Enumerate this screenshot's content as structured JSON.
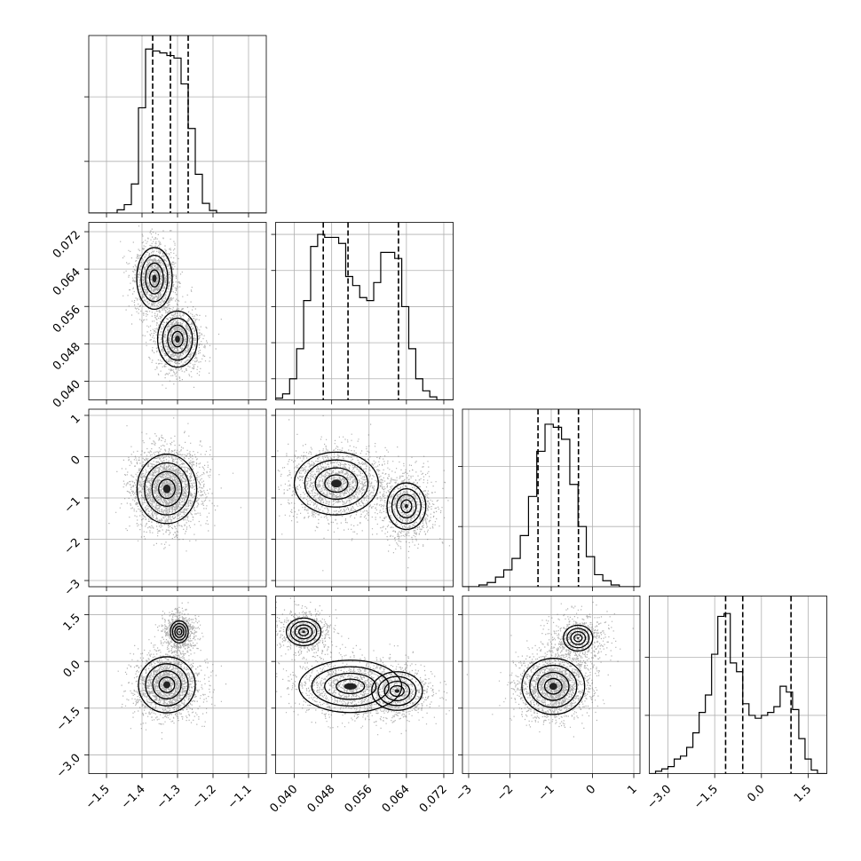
{
  "chart_data": {
    "type": "corner",
    "title": "",
    "grid": true,
    "parameters": [
      {
        "label": "",
        "range": [
          -1.55,
          -1.05
        ],
        "ticks": [
          -1.5,
          -1.4,
          -1.3,
          -1.2,
          -1.1
        ],
        "tick_labels": [
          "−1.5",
          "−1.4",
          "−1.3",
          "−1.2",
          "−1.1"
        ],
        "quantiles": [
          -1.37,
          -1.32,
          -1.27
        ],
        "hist": {
          "edges": [
            -1.55,
            -1.53,
            -1.51,
            -1.49,
            -1.47,
            -1.45,
            -1.43,
            -1.41,
            -1.39,
            -1.37,
            -1.35,
            -1.33,
            -1.31,
            -1.29,
            -1.27,
            -1.25,
            -1.23,
            -1.21,
            -1.19,
            -1.17,
            -1.15,
            -1.13,
            -1.11,
            -1.09,
            -1.07,
            -1.05
          ],
          "counts": [
            0,
            0,
            0,
            0,
            0.5,
            1.3,
            4.5,
            16.3,
            25.4,
            25.1,
            24.8,
            24.4,
            24.0,
            20.0,
            13.1,
            6.0,
            1.5,
            0.4,
            0,
            0,
            0,
            0,
            0,
            0,
            0
          ],
          "ylim": [
            0,
            27.5
          ],
          "grid_y": [
            8,
            18
          ]
        }
      },
      {
        "label": "",
        "range": [
          0.036,
          0.074
        ],
        "ticks": [
          0.04,
          0.048,
          0.056,
          0.064,
          0.072
        ],
        "tick_labels": [
          "0.040",
          "0.048",
          "0.056",
          "0.064",
          "0.072"
        ],
        "quantiles": [
          0.0462,
          0.0515,
          0.0623
        ],
        "hist": {
          "edges": [
            0.036,
            0.0375,
            0.039,
            0.0405,
            0.042,
            0.0435,
            0.045,
            0.0465,
            0.048,
            0.0495,
            0.051,
            0.0525,
            0.054,
            0.0555,
            0.057,
            0.0585,
            0.06,
            0.0615,
            0.063,
            0.0645,
            0.066,
            0.0675,
            0.069,
            0.0705,
            0.072,
            0.0735,
            0.074
          ],
          "counts": [
            0.3,
            1.0,
            3.5,
            8.5,
            16.5,
            25.5,
            27.5,
            27.0,
            27.0,
            26.0,
            20.5,
            19.0,
            17.0,
            16.5,
            19.5,
            24.5,
            24.5,
            23.5,
            15.5,
            8.5,
            3.5,
            1.5,
            0.5,
            0,
            0,
            0
          ],
          "ylim": [
            0,
            29.5
          ],
          "grid_y": [
            3.5,
            9.5,
            15.5,
            21.5,
            27.5
          ]
        }
      },
      {
        "label": "",
        "range": [
          -3.15,
          1.15
        ],
        "ticks": [
          -3,
          -2,
          -1,
          0,
          1
        ],
        "tick_labels": [
          "−3",
          "−2",
          "−1",
          "0",
          "1"
        ],
        "quantiles": [
          -1.32,
          -0.82,
          -0.34
        ],
        "hist": {
          "edges": [
            -3.15,
            -2.95,
            -2.75,
            -2.55,
            -2.35,
            -2.15,
            -1.95,
            -1.75,
            -1.55,
            -1.35,
            -1.15,
            -0.95,
            -0.75,
            -0.55,
            -0.35,
            -0.15,
            0.05,
            0.25,
            0.45,
            0.65,
            0.85,
            1.05,
            1.15
          ],
          "counts": [
            0,
            0,
            0.3,
            0.7,
            1.6,
            2.8,
            4.7,
            8.5,
            15.0,
            22.5,
            27.0,
            26.5,
            24.5,
            17.0,
            10.0,
            5.0,
            2.0,
            1.0,
            0.3,
            0,
            0,
            0
          ],
          "ylim": [
            0,
            29.5
          ],
          "grid_y": [
            10,
            20
          ]
        }
      },
      {
        "label": "",
        "range": [
          -3.6,
          2.1
        ],
        "ticks": [
          -3.0,
          -1.5,
          0.0,
          1.5
        ],
        "tick_labels": [
          "−3.0",
          "−1.5",
          "0.0",
          "1.5"
        ],
        "quantiles": [
          -1.15,
          -0.6,
          0.95
        ],
        "hist": {
          "edges": [
            -3.6,
            -3.4,
            -3.2,
            -3.0,
            -2.8,
            -2.6,
            -2.4,
            -2.2,
            -2.0,
            -1.8,
            -1.6,
            -1.4,
            -1.2,
            -1.0,
            -0.8,
            -0.6,
            -0.4,
            -0.2,
            0.0,
            0.2,
            0.4,
            0.6,
            0.8,
            1.0,
            1.2,
            1.4,
            1.6,
            1.8,
            2.1
          ],
          "counts": [
            0,
            0.4,
            0.8,
            1.2,
            2.5,
            3.0,
            4.5,
            7.0,
            10.5,
            13.5,
            20.5,
            27.0,
            27.5,
            19.0,
            17.5,
            12.0,
            10.0,
            9.5,
            10.0,
            10.5,
            11.5,
            15.0,
            14.0,
            11.0,
            6.0,
            2.5,
            0.6,
            0
          ],
          "ylim": [
            0,
            30.5
          ],
          "grid_y": [
            10,
            20
          ]
        }
      }
    ],
    "pair_modes": {
      "1_0": [
        {
          "x": -1.365,
          "y": 0.062,
          "sx": 0.025,
          "sy": 0.0033,
          "w": 1.0
        },
        {
          "x": -1.3,
          "y": 0.049,
          "sx": 0.028,
          "sy": 0.003,
          "w": 1.0
        }
      ],
      "2_0": [
        {
          "x": -1.33,
          "y": -0.78,
          "sx": 0.042,
          "sy": 0.42,
          "w": 1.0
        }
      ],
      "2_1": [
        {
          "x": 0.049,
          "y": -0.65,
          "sx": 0.0045,
          "sy": 0.38,
          "w": 1.0
        },
        {
          "x": 0.064,
          "y": -1.2,
          "sx": 0.0028,
          "sy": 0.38,
          "w": 0.55
        }
      ],
      "3_0": [
        {
          "x": -1.33,
          "y": -0.75,
          "sx": 0.04,
          "sy": 0.45,
          "w": 1.0
        },
        {
          "x": -1.295,
          "y": 0.95,
          "sx": 0.02,
          "sy": 0.28,
          "w": 0.4
        }
      ],
      "3_1": [
        {
          "x": 0.052,
          "y": -0.8,
          "sx": 0.0055,
          "sy": 0.42,
          "w": 1.0
        },
        {
          "x": 0.062,
          "y": -0.95,
          "sx": 0.0035,
          "sy": 0.4,
          "w": 0.6
        },
        {
          "x": 0.042,
          "y": 0.95,
          "sx": 0.0025,
          "sy": 0.3,
          "w": 0.55
        }
      ],
      "3_2": [
        {
          "x": -0.95,
          "y": -0.8,
          "sx": 0.38,
          "sy": 0.45,
          "w": 1.0
        },
        {
          "x": -0.35,
          "y": 0.75,
          "sx": 0.3,
          "sy": 0.35,
          "w": 0.35
        }
      ]
    }
  }
}
